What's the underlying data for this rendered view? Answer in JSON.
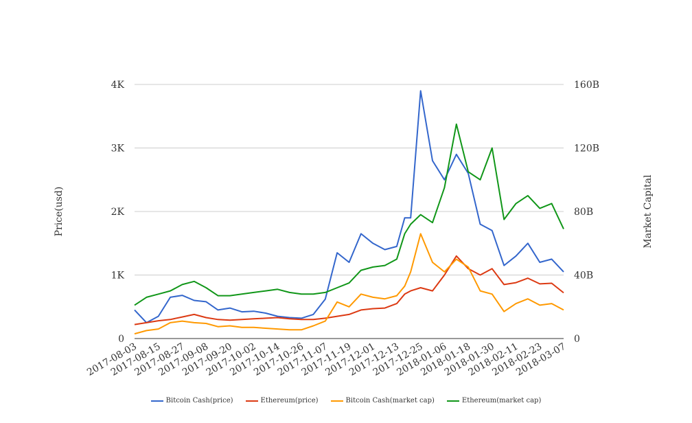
{
  "chart_data": {
    "type": "line",
    "title": "",
    "ylabel": "Price(usd)",
    "y2label": "Market Capital",
    "ylim": [
      0,
      4000
    ],
    "y2lim": [
      0,
      160000000000
    ],
    "yticks": [
      "0",
      "1K",
      "2K",
      "3K",
      "4K"
    ],
    "y2ticks": [
      "0",
      "40B",
      "80B",
      "120B",
      "160B"
    ],
    "x_tick_labels": [
      "2017-08-03",
      "2017-08-15",
      "2017-08-27",
      "2017-09-08",
      "2017-09-20",
      "2017-10-02",
      "2017-10-14",
      "2017-10-26",
      "2017-11-07",
      "2017-11-19",
      "2017-12-01",
      "2017-12-13",
      "2017-12-25",
      "2018-01-06",
      "2018-01-18",
      "2018-01-30",
      "2018-02-11",
      "2018-02-23",
      "2018-03-07"
    ],
    "x": [
      "2017-08-03",
      "2017-08-09",
      "2017-08-15",
      "2017-08-21",
      "2017-08-27",
      "2017-09-02",
      "2017-09-08",
      "2017-09-14",
      "2017-09-20",
      "2017-09-26",
      "2017-10-02",
      "2017-10-08",
      "2017-10-14",
      "2017-10-20",
      "2017-10-26",
      "2017-11-01",
      "2017-11-07",
      "2017-11-13",
      "2017-11-19",
      "2017-11-25",
      "2017-12-01",
      "2017-12-07",
      "2017-12-13",
      "2017-12-17",
      "2017-12-20",
      "2017-12-25",
      "2017-12-31",
      "2018-01-06",
      "2018-01-12",
      "2018-01-18",
      "2018-01-24",
      "2018-01-30",
      "2018-02-05",
      "2018-02-11",
      "2018-02-17",
      "2018-02-23",
      "2018-03-01",
      "2018-03-07"
    ],
    "grid": true,
    "legend_position": "bottom",
    "series": [
      {
        "name": "Bitcoin Cash(price)",
        "axis": "left",
        "color": "#3366cc",
        "values": [
          450,
          250,
          350,
          650,
          680,
          600,
          580,
          450,
          480,
          420,
          430,
          400,
          350,
          330,
          320,
          380,
          620,
          1350,
          1200,
          1650,
          1500,
          1400,
          1450,
          1900,
          1900,
          3900,
          2800,
          2500,
          2900,
          2600,
          1800,
          1700,
          1150,
          1300,
          1500,
          1200,
          1250,
          1050
        ]
      },
      {
        "name": "Ethereum(price)",
        "axis": "left",
        "color": "#dc3912",
        "values": [
          220,
          250,
          280,
          300,
          340,
          380,
          330,
          300,
          290,
          300,
          310,
          320,
          330,
          310,
          300,
          300,
          320,
          350,
          380,
          450,
          470,
          480,
          550,
          700,
          750,
          800,
          750,
          1000,
          1300,
          1100,
          1000,
          1100,
          850,
          880,
          950,
          860,
          870,
          720
        ]
      },
      {
        "name": "Bitcoin Cash(market cap)",
        "axis": "right",
        "color": "#ff9900",
        "values": [
          3000000000,
          5000000000,
          6000000000,
          10000000000,
          11000000000,
          10000000000,
          9500000000,
          7500000000,
          8000000000,
          7000000000,
          7000000000,
          6500000000,
          6000000000,
          5500000000,
          5500000000,
          8000000000,
          11000000000,
          23000000000,
          20000000000,
          28000000000,
          26000000000,
          25000000000,
          27000000000,
          33000000000,
          42000000000,
          66000000000,
          48000000000,
          42000000000,
          50000000000,
          45000000000,
          30000000000,
          28000000000,
          17000000000,
          22000000000,
          25000000000,
          21000000000,
          22000000000,
          18000000000
        ]
      },
      {
        "name": "Ethereum(market cap)",
        "axis": "right",
        "color": "#109618",
        "values": [
          21000000000,
          26000000000,
          28000000000,
          30000000000,
          34000000000,
          36000000000,
          32000000000,
          27000000000,
          27000000000,
          28000000000,
          29000000000,
          30000000000,
          31000000000,
          29000000000,
          28000000000,
          28000000000,
          29000000000,
          32000000000,
          35000000000,
          43000000000,
          45000000000,
          46000000000,
          50000000000,
          66000000000,
          72000000000,
          78000000000,
          73000000000,
          95000000000,
          135000000000,
          105000000000,
          100000000000,
          120000000000,
          75000000000,
          85000000000,
          90000000000,
          82000000000,
          85000000000,
          69000000000
        ]
      }
    ]
  }
}
